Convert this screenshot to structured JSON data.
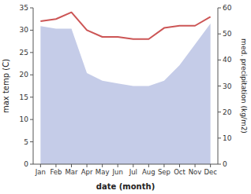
{
  "chart_data": {
    "type": "line",
    "categories": [
      "Jan",
      "Feb",
      "Mar",
      "Apr",
      "May",
      "Jun",
      "Jul",
      "Aug",
      "Sep",
      "Oct",
      "Nov",
      "Dec"
    ],
    "xlabel": "date (month)",
    "ylabel": "max temp (C)",
    "y2label": "med. precipitation (kg/m2)",
    "series": [
      {
        "type": "area",
        "axis": "y2",
        "color": "#c5cce8",
        "values": [
          53,
          52,
          52,
          35,
          32,
          31,
          30,
          30,
          32,
          38,
          46,
          54
        ]
      },
      {
        "type": "line",
        "axis": "y",
        "color": "#cc5555",
        "values": [
          32,
          32.5,
          34,
          30,
          28.5,
          28.5,
          28,
          28,
          30.5,
          31,
          31,
          33
        ]
      }
    ],
    "ylim": [
      0,
      35
    ],
    "yticks": [
      0,
      5,
      10,
      15,
      20,
      25,
      30,
      35
    ],
    "y2lim": [
      0,
      60
    ],
    "y2ticks": [
      0,
      10,
      20,
      30,
      40,
      50,
      60
    ],
    "grid": false
  }
}
